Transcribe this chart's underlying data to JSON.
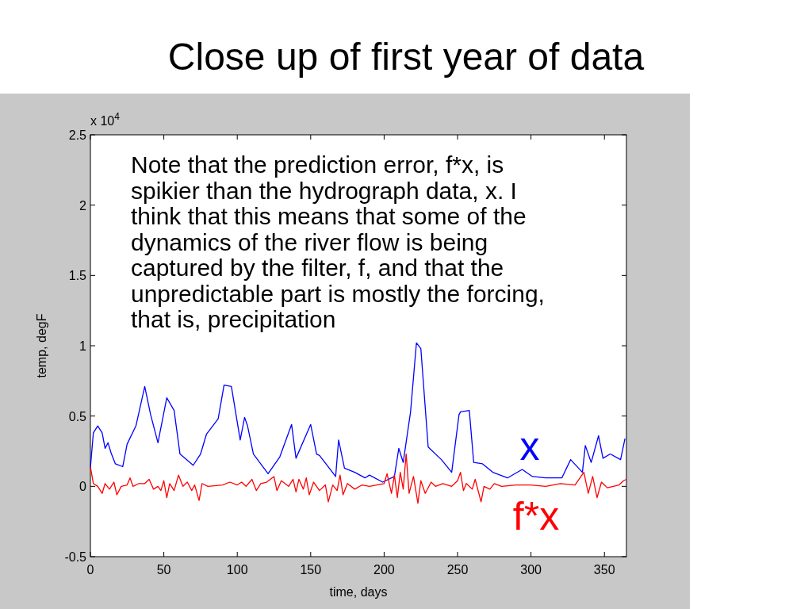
{
  "chart_data": {
    "type": "line",
    "title": "Close up of first year of data",
    "xlabel": "time, days",
    "ylabel": "temp, degF",
    "annotations": [
      "x 10$^{4}$",
      "Note that the prediction error, f*x, is spikier than the hydrograph data, x. I think that this means that some of the dynamics of the river flow is being captured by the filter, f, and that the unpredictable part is mostly the forcing, that is, precipitation"
    ],
    "xlim": [
      0,
      365
    ],
    "xticks": [
      0,
      50,
      100,
      150,
      200,
      250,
      300,
      350
    ],
    "ylim": [
      -0.5,
      2.5
    ],
    "yticks": [
      -0.5,
      0,
      0.5,
      1,
      1.5,
      2,
      2.5
    ],
    "legend": false,
    "series": [
      {
        "name": "x",
        "color": "#0000ff",
        "x": [
          0,
          2,
          5,
          8,
          10,
          12,
          14,
          17,
          22,
          25,
          31,
          37,
          41,
          46,
          52,
          57,
          61,
          70,
          75,
          79,
          87,
          91,
          96,
          102,
          105,
          107,
          111,
          121,
          129,
          137,
          140,
          150,
          154,
          156,
          167,
          169,
          173,
          180,
          187,
          190,
          199,
          207,
          210,
          213,
          218,
          222,
          225,
          230,
          239,
          246,
          251,
          252,
          258,
          261,
          267,
          274,
          284,
          294,
          301,
          310,
          321,
          327,
          335,
          337,
          341,
          346,
          349,
          354,
          361,
          364
        ],
        "values": [
          0.13,
          0.38,
          0.43,
          0.38,
          0.27,
          0.31,
          0.24,
          0.16,
          0.14,
          0.3,
          0.43,
          0.71,
          0.51,
          0.31,
          0.63,
          0.54,
          0.23,
          0.15,
          0.23,
          0.37,
          0.48,
          0.72,
          0.71,
          0.33,
          0.49,
          0.43,
          0.23,
          0.09,
          0.21,
          0.44,
          0.2,
          0.44,
          0.23,
          0.22,
          0.07,
          0.33,
          0.13,
          0.1,
          0.06,
          0.08,
          0.03,
          0.07,
          0.27,
          0.17,
          0.53,
          1.02,
          0.98,
          0.28,
          0.19,
          0.1,
          0.51,
          0.53,
          0.54,
          0.17,
          0.16,
          0.1,
          0.06,
          0.12,
          0.07,
          0.06,
          0.06,
          0.19,
          0.1,
          0.29,
          0.17,
          0.36,
          0.2,
          0.23,
          0.19,
          0.34
        ]
      },
      {
        "name": "f*x",
        "color": "#ff0000",
        "x": [
          0,
          2,
          5,
          8,
          10,
          13,
          16,
          18,
          21,
          25,
          27,
          29,
          33,
          37,
          40,
          43,
          46,
          48,
          50,
          52,
          54,
          57,
          60,
          63,
          66,
          69,
          71,
          74,
          76,
          80,
          90,
          95,
          100,
          103,
          106,
          110,
          113,
          116,
          120,
          125,
          127,
          130,
          135,
          138,
          140,
          142,
          145,
          147,
          149,
          152,
          156,
          160,
          162,
          165,
          168,
          170,
          172,
          175,
          180,
          185,
          190,
          195,
          200,
          202,
          205,
          207,
          209,
          211,
          213,
          215,
          217,
          220,
          223,
          225,
          228,
          232,
          235,
          240,
          246,
          250,
          252,
          254,
          256,
          260,
          262,
          266,
          268,
          272,
          275,
          280,
          290,
          300,
          310,
          320,
          330,
          336,
          339,
          342,
          345,
          348,
          352,
          356,
          360,
          363,
          365
        ],
        "values": [
          0.14,
          0.02,
          0.0,
          -0.05,
          0.02,
          -0.02,
          0.03,
          -0.06,
          0.0,
          0.01,
          0.06,
          0.0,
          0.02,
          0.02,
          0.05,
          -0.02,
          0.0,
          -0.03,
          0.04,
          -0.08,
          0.02,
          -0.03,
          0.08,
          0.0,
          0.03,
          -0.03,
          0.01,
          -0.1,
          0.02,
          0.0,
          0.01,
          0.03,
          0.01,
          0.03,
          0.0,
          0.05,
          -0.03,
          0.02,
          0.03,
          0.07,
          -0.03,
          0.04,
          0.0,
          0.05,
          -0.04,
          0.05,
          -0.02,
          0.06,
          -0.06,
          0.03,
          -0.03,
          0.01,
          -0.11,
          0.01,
          -0.03,
          0.08,
          -0.06,
          0.02,
          -0.02,
          0.01,
          0.0,
          0.01,
          0.02,
          0.09,
          -0.05,
          0.08,
          -0.08,
          0.1,
          -0.02,
          0.23,
          -0.05,
          0.07,
          -0.12,
          0.04,
          -0.05,
          0.03,
          0.0,
          0.02,
          0.0,
          0.04,
          0.1,
          -0.03,
          0.02,
          -0.02,
          0.05,
          -0.11,
          0.0,
          -0.02,
          0.02,
          0.0,
          0.01,
          0.01,
          0.0,
          0.02,
          0.01,
          0.1,
          -0.05,
          0.07,
          -0.08,
          0.03,
          -0.01,
          0.0,
          0.01,
          0.04,
          0.05
        ]
      }
    ]
  }
}
